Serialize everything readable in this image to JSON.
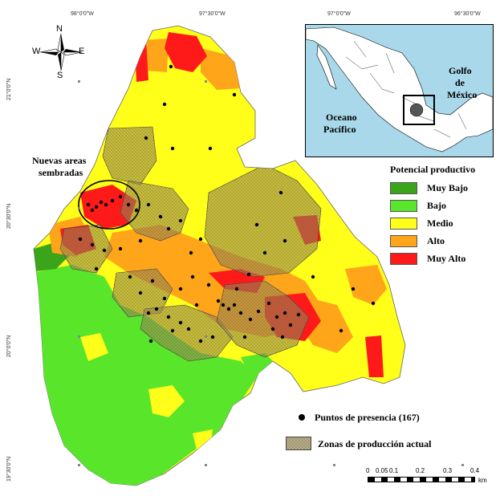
{
  "coords": {
    "top": [
      "98°0'0\"W",
      "97°30'0\"W",
      "97°0'0\"W",
      "96°30'0\"W"
    ],
    "left": [
      "21°0'0\"N",
      "20°30'0\"N",
      "20°0'0\"N",
      "19°30'0\"N"
    ]
  },
  "compass": {
    "n": "N",
    "s": "S",
    "e": "E",
    "w": "W"
  },
  "callout": {
    "line1": "Nuevas areas",
    "line2": "sembradas"
  },
  "inset": {
    "gulf1": "Golfo",
    "gulf2": "de",
    "gulf3": "México",
    "ocean1": "Oceano",
    "ocean2": "Pacífico"
  },
  "legend": {
    "title": "Potencial productivo",
    "items": [
      {
        "label": "Muy Bajo",
        "color": "#3aa51a"
      },
      {
        "label": "Bajo",
        "color": "#59e52a"
      },
      {
        "label": "Medio",
        "color": "#ffff1a"
      },
      {
        "label": "Alto",
        "color": "#ffa519"
      },
      {
        "label": "Muy Alto",
        "color": "#ff1a1a"
      }
    ]
  },
  "points_label": "Puntos de presencia (167)",
  "zones_label": "Zonas de producción actual",
  "scale": {
    "ticks": [
      "0",
      "0.05",
      "0.1",
      "0.2",
      "0.3",
      "0.4"
    ],
    "unit": "km"
  }
}
